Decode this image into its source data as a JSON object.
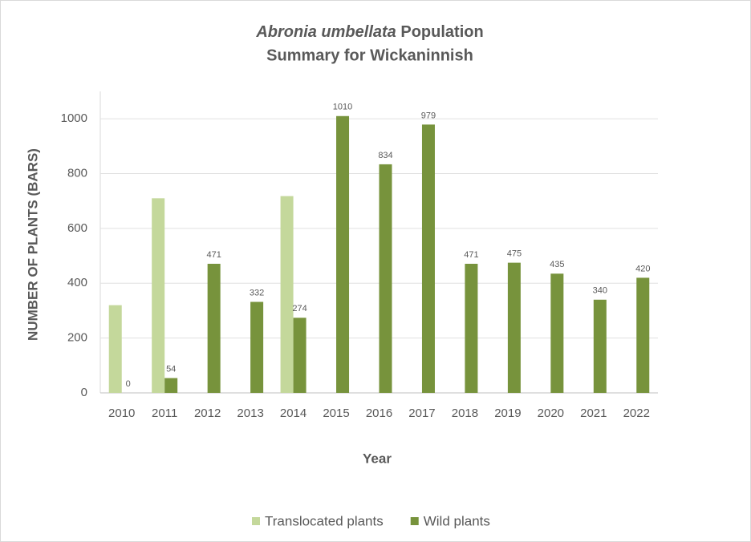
{
  "chart_data": {
    "type": "bar",
    "title": [
      "Abronia umbellata",
      "Population",
      "Summary for Wickaninnish"
    ],
    "x_label": "Year",
    "y_label": "NUMBER OF PLANTS  (BARS)",
    "categories": [
      "2010",
      "2011",
      "2012",
      "2013",
      "2014",
      "2015",
      "2016",
      "2017",
      "2018",
      "2019",
      "2020",
      "2021",
      "2022"
    ],
    "series": [
      {
        "name": "Translocated plants",
        "color": "#c4d89b",
        "values": [
          320,
          710,
          null,
          null,
          718,
          null,
          null,
          null,
          null,
          null,
          null,
          null,
          null
        ],
        "data_labels": false
      },
      {
        "name": "Wild plants",
        "color": "#77933c",
        "values": [
          0,
          54,
          471,
          332,
          274,
          1010,
          834,
          979,
          471,
          475,
          435,
          340,
          420
        ],
        "data_labels": true
      }
    ],
    "ylim": [
      0,
      1100
    ],
    "yticks": [
      0,
      200,
      400,
      600,
      800,
      1000
    ],
    "grid": true,
    "legend": "bottom"
  }
}
